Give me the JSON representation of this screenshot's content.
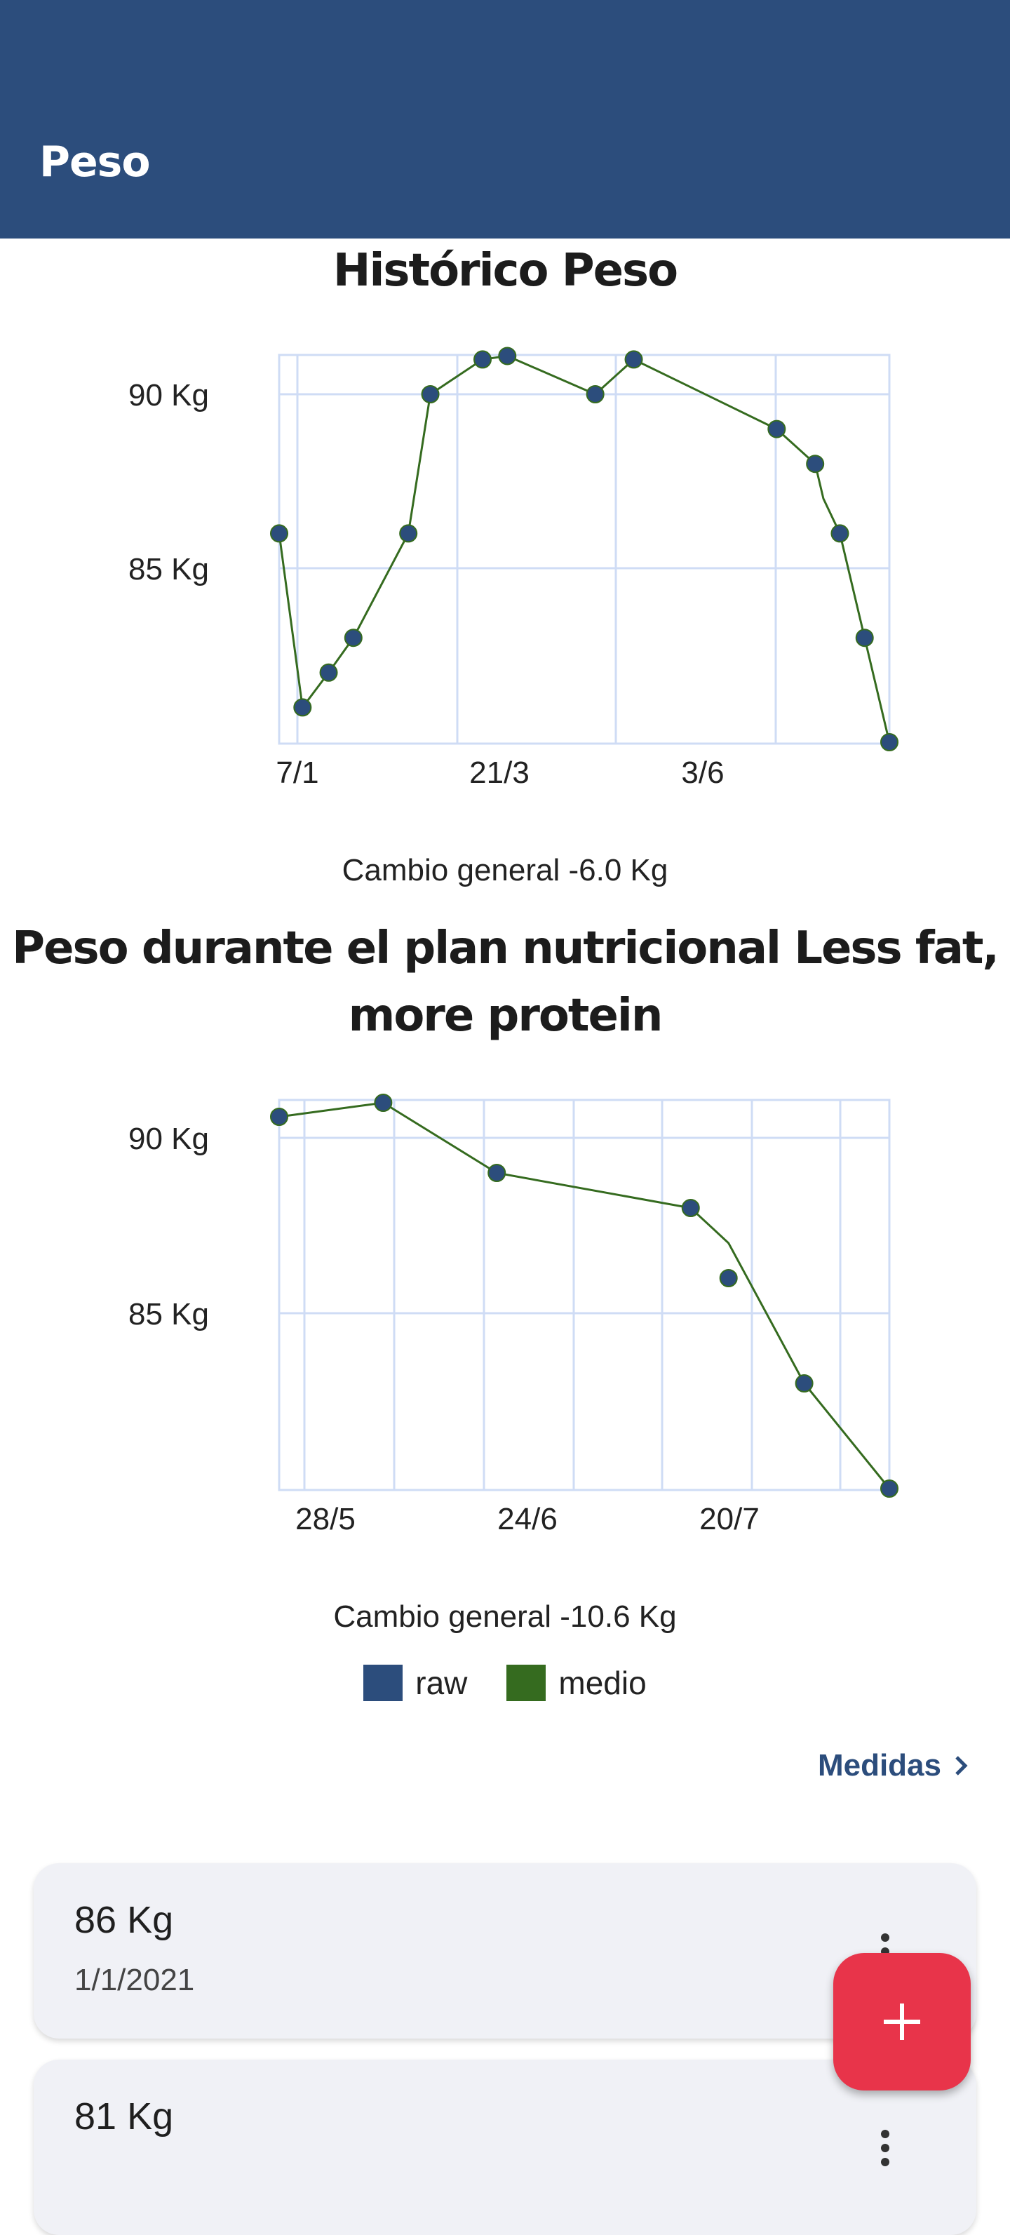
{
  "app_bar": {
    "title": "Peso"
  },
  "chart_data": [
    {
      "type": "line",
      "title": "Histórico Peso",
      "x_tick_labels": [
        "7/1",
        "21/3",
        "3/6"
      ],
      "y_tick_labels": [
        "90 Kg",
        "85 Kg"
      ],
      "ylim": [
        80,
        91.5
      ],
      "grid": true,
      "series": [
        {
          "name": "raw",
          "color": "#2c4d7c",
          "x": [
            0,
            8.5,
            18,
            27,
            47,
            55,
            74,
            83,
            115,
            129,
            181,
            195,
            204,
            213
          ],
          "values": [
            86,
            81,
            82,
            83,
            86,
            90,
            91,
            91.1,
            90,
            91,
            89,
            88,
            86,
            83
          ]
        },
        {
          "name": "medio",
          "color": "#356b1f",
          "x": [
            0,
            8.5,
            18,
            27,
            47,
            55,
            74,
            83,
            115,
            129,
            181,
            195,
            198,
            204,
            213,
            222
          ],
          "values": [
            86,
            81,
            82,
            83,
            86,
            90,
            91,
            91.1,
            90,
            91,
            89,
            88,
            87,
            86,
            83,
            80
          ]
        }
      ],
      "extra_point": {
        "x": 222,
        "value": 80
      },
      "summary": "Cambio general -6.0 Kg"
    },
    {
      "type": "line",
      "title": "Peso durante el plan nutricional Less fat, more protein",
      "x_tick_labels": [
        "28/5",
        "24/6",
        "20/7"
      ],
      "y_tick_labels": [
        "90 Kg",
        "85 Kg"
      ],
      "ylim": [
        80,
        91.5
      ],
      "grid": true,
      "series": [
        {
          "name": "raw",
          "color": "#2c4d7c",
          "x": [
            0,
            22,
            46,
            87,
            95,
            111,
            129
          ],
          "values": [
            90.6,
            91,
            89,
            88,
            86,
            83,
            80
          ]
        },
        {
          "name": "medio",
          "color": "#356b1f",
          "x": [
            0,
            22,
            46,
            87,
            95,
            111,
            129
          ],
          "values": [
            90.6,
            91,
            89,
            88,
            87,
            83,
            80
          ]
        }
      ],
      "summary": "Cambio general -10.6 Kg"
    }
  ],
  "legend": [
    {
      "label": "raw",
      "color": "#2c4d7c"
    },
    {
      "label": "medio",
      "color": "#356b1f"
    }
  ],
  "measures_link": {
    "label": "Medidas"
  },
  "entries": [
    {
      "value": "86 Kg",
      "date": "1/1/2021"
    },
    {
      "value": "81 Kg",
      "date": ""
    }
  ],
  "fab": {
    "icon": "plus-icon"
  }
}
